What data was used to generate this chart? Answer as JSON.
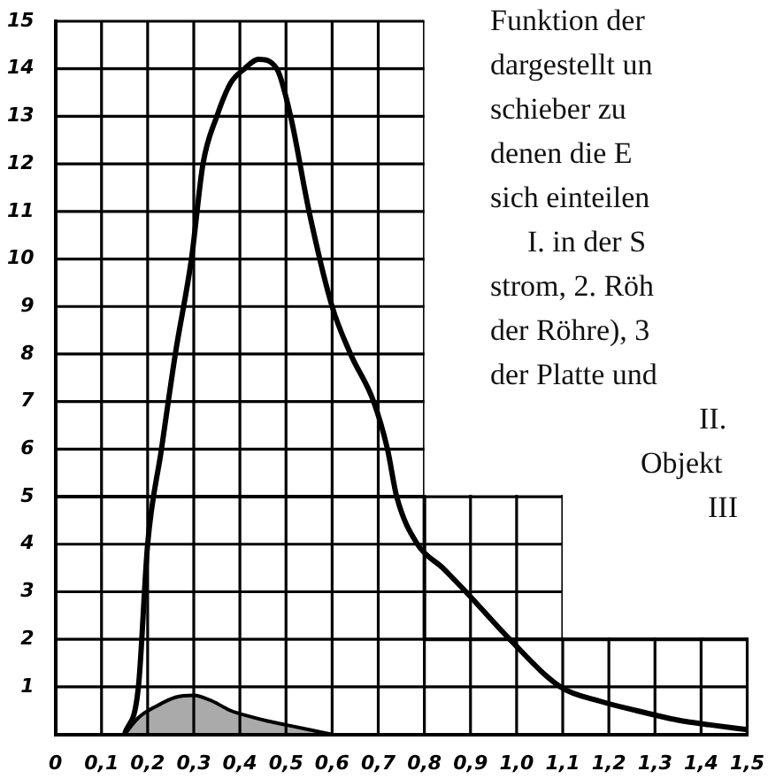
{
  "chart_data": {
    "type": "line",
    "xlim": [
      0,
      1.5
    ],
    "ylim": [
      0,
      15
    ],
    "xticks": [
      0,
      {
        "value": 0.1,
        "label": "0,1"
      },
      {
        "value": 0.2,
        "label": "0,2"
      },
      {
        "value": 0.3,
        "label": "0,3"
      },
      {
        "value": 0.4,
        "label": "0,4"
      },
      {
        "value": 0.5,
        "label": "0,5"
      },
      {
        "value": 0.6,
        "label": "0,6"
      },
      {
        "value": 0.7,
        "label": "0,7"
      },
      {
        "value": 0.8,
        "label": "0,8"
      },
      {
        "value": 0.9,
        "label": "0,9"
      },
      {
        "value": 1.0,
        "label": "1,0"
      },
      {
        "value": 1.1,
        "label": "1,1"
      },
      {
        "value": 1.2,
        "label": "1,2"
      },
      {
        "value": 1.3,
        "label": "1,3"
      },
      {
        "value": 1.4,
        "label": "1,4"
      },
      {
        "value": 1.5,
        "label": "1,5"
      }
    ],
    "yticks": [
      1,
      2,
      3,
      4,
      5,
      6,
      7,
      8,
      9,
      10,
      11,
      12,
      13,
      14,
      15
    ],
    "grid": true,
    "legend": false,
    "marker": "none",
    "line_style": "solid",
    "series": [
      {
        "type": "step",
        "color": "#000000",
        "x": [
          0,
          0.8,
          1.1,
          1.5
        ],
        "values": [
          15,
          5,
          2,
          2
        ]
      },
      {
        "type": "line",
        "color": "#000000",
        "x": [
          0.15,
          0.18,
          0.2,
          0.23,
          0.26,
          0.295,
          0.32,
          0.35,
          0.38,
          0.41,
          0.44,
          0.48,
          0.51,
          0.55,
          0.6,
          0.64,
          0.69,
          0.72,
          0.74,
          0.785,
          0.84,
          0.89,
          0.985,
          1.095,
          1.18,
          1.26,
          1.35,
          1.42,
          1.5
        ],
        "values": [
          0,
          1,
          4,
          6,
          8,
          10,
          12,
          13,
          13.7,
          14,
          14.2,
          14,
          13,
          11,
          9,
          8,
          7,
          6,
          5,
          4,
          3.5,
          3,
          2,
          1,
          0.7,
          0.5,
          0.3,
          0.2,
          0.1
        ]
      },
      {
        "type": "area",
        "color": "#000000",
        "x": [
          0.15,
          0.18,
          0.22,
          0.26,
          0.3,
          0.34,
          0.38,
          0.42,
          0.46,
          0.5,
          0.55,
          0.6
        ],
        "values": [
          0,
          0.35,
          0.6,
          0.78,
          0.82,
          0.7,
          0.5,
          0.38,
          0.28,
          0.2,
          0.1,
          0
        ]
      }
    ],
    "annotations": [
      "Funktion der",
      "dargestellt un",
      "schieber zu",
      "denen die E",
      "sich einteilen",
      "I. in der S",
      "strom, 2. Röh",
      "der Röhre), 3",
      "der Platte und",
      "II.",
      "Objekt",
      "III"
    ]
  }
}
